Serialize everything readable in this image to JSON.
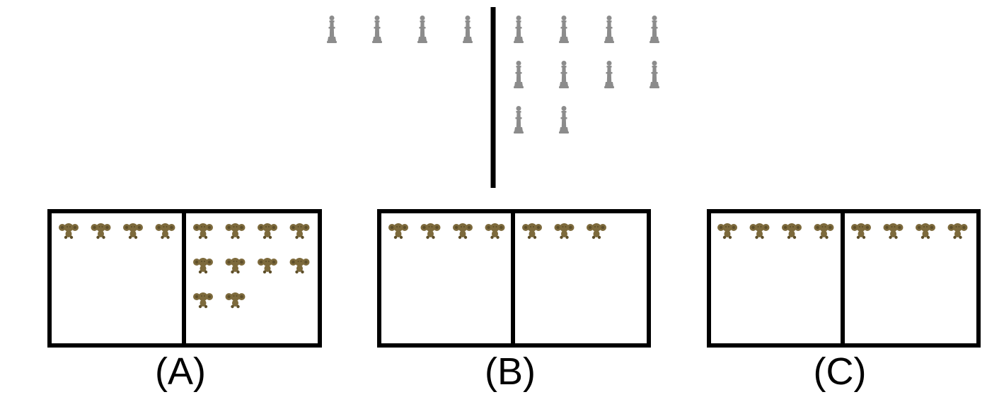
{
  "colors": {
    "divider": "#000000",
    "pawn": "#8c8c8c",
    "monkey": "#7d6a3c",
    "monkey_dark": "#5e4f2a",
    "frame": "#000000"
  },
  "icons": {
    "reference_item": "pawn-icon",
    "option_item": "monkey-icon"
  },
  "reference": {
    "left_count": 4,
    "right_count": 10
  },
  "options": [
    {
      "label": "(A)",
      "left_count": 4,
      "right_count": 10
    },
    {
      "label": "(B)",
      "left_count": 4,
      "right_count": 3
    },
    {
      "label": "(C)",
      "left_count": 4,
      "right_count": 4
    }
  ]
}
